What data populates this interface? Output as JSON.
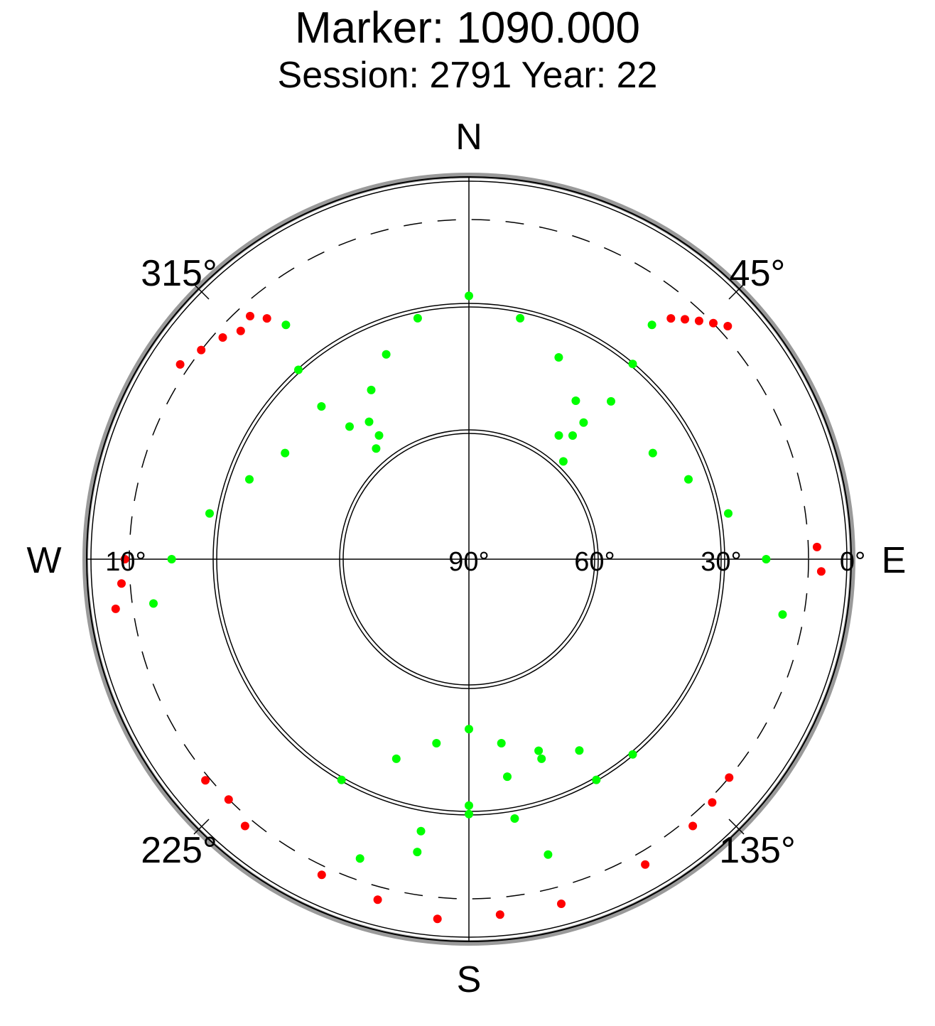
{
  "header": {
    "title": "Marker: 1090.000",
    "subtitle": "Session: 2791 Year: 22"
  },
  "chart_data": {
    "type": "scatter",
    "projection": "polar-skyplot",
    "title": "Marker: 1090.000",
    "subtitle": "Session: 2791 Year: 22",
    "directions": {
      "north": "N",
      "south": "S",
      "east": "E",
      "west": "W"
    },
    "azimuth_labels": [
      "45°",
      "135°",
      "225°",
      "315°"
    ],
    "elevation_labels": [
      "0°",
      "10°",
      "30°",
      "60°",
      "90°"
    ],
    "elevation_rings": [
      0,
      30,
      60
    ],
    "cutoff_ring": 10,
    "elevation_range": [
      0,
      90
    ],
    "grid": true,
    "colors": {
      "track": "#00ff00",
      "low": "#ff0000",
      "grid": "#000000",
      "rim": "#9a9a9a"
    },
    "series": [
      {
        "color": "#00ff00",
        "points": [
          [
            320,
            56
          ],
          [
            324,
            50
          ],
          [
            330,
            44
          ],
          [
            338,
            38
          ],
          [
            348,
            32
          ],
          [
            0,
            28
          ],
          [
            12,
            32
          ],
          [
            24,
            38
          ],
          [
            34,
            45
          ],
          [
            40,
            52
          ],
          [
            44,
            58
          ],
          [
            322,
            20
          ],
          [
            318,
            30
          ],
          [
            316,
            40
          ],
          [
            318,
            48
          ],
          [
            324,
            54
          ],
          [
            38,
            20
          ],
          [
            40,
            30
          ],
          [
            42,
            40
          ],
          [
            40,
            48
          ],
          [
            36,
            54
          ],
          [
            300,
            40
          ],
          [
            290,
            35
          ],
          [
            280,
            28
          ],
          [
            270,
            20
          ],
          [
            262,
            15
          ],
          [
            60,
            40
          ],
          [
            70,
            35
          ],
          [
            80,
            28
          ],
          [
            90,
            20
          ],
          [
            100,
            15
          ],
          [
            210,
            30
          ],
          [
            200,
            40
          ],
          [
            190,
            46
          ],
          [
            180,
            50
          ],
          [
            170,
            46
          ],
          [
            160,
            40
          ],
          [
            150,
            30
          ],
          [
            190,
            20
          ],
          [
            180,
            30
          ],
          [
            170,
            38
          ],
          [
            160,
            42
          ],
          [
            150,
            38
          ],
          [
            140,
            30
          ],
          [
            200,
            15
          ],
          [
            190,
            25
          ],
          [
            180,
            32
          ],
          [
            170,
            28
          ],
          [
            165,
            18
          ]
        ]
      },
      {
        "color": "#ff0000",
        "points": [
          [
            315,
            14
          ],
          [
            312,
            12
          ],
          [
            308,
            10
          ],
          [
            304,
            8
          ],
          [
            320,
            16
          ],
          [
            318,
            13
          ],
          [
            42,
            14
          ],
          [
            44,
            12
          ],
          [
            46,
            10
          ],
          [
            48,
            8
          ],
          [
            40,
            16
          ],
          [
            88,
            8
          ],
          [
            92,
            7
          ],
          [
            270,
            9
          ],
          [
            266,
            8
          ],
          [
            262,
            6
          ],
          [
            225,
            10
          ],
          [
            220,
            8
          ],
          [
            230,
            9
          ],
          [
            135,
            9
          ],
          [
            140,
            8
          ],
          [
            130,
            10
          ],
          [
            175,
            6
          ],
          [
            185,
            5
          ],
          [
            195,
            7
          ],
          [
            165,
            6
          ],
          [
            150,
            7
          ],
          [
            205,
            8
          ]
        ]
      }
    ]
  }
}
